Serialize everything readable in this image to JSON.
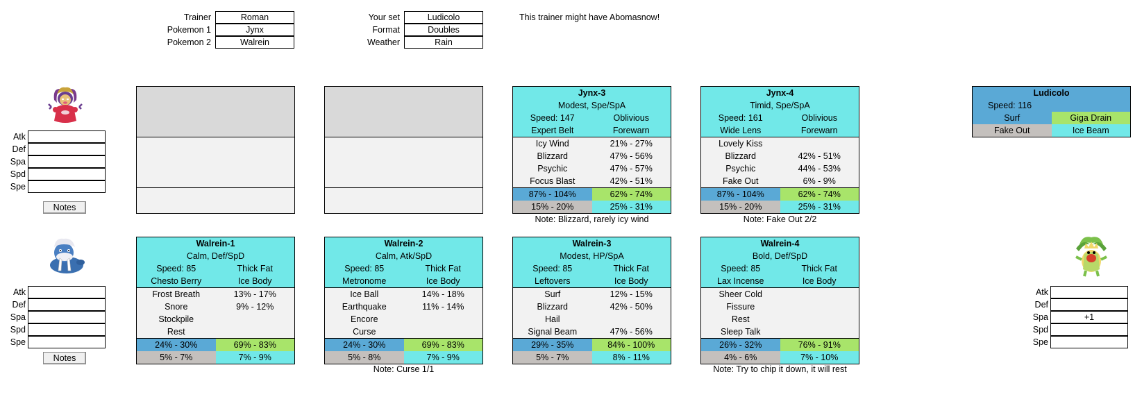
{
  "header": {
    "left": [
      {
        "label": "Trainer",
        "value": "Roman"
      },
      {
        "label": "Pokemon 1",
        "value": "Jynx"
      },
      {
        "label": "Pokemon 2",
        "value": "Walrein"
      }
    ],
    "right": [
      {
        "label": "Your set",
        "value": "Ludicolo"
      },
      {
        "label": "Format",
        "value": "Doubles"
      },
      {
        "label": "Weather",
        "value": "Rain"
      }
    ],
    "message": "This trainer might have Abomasnow!"
  },
  "stat_labels": [
    "Atk",
    "Def",
    "Spa",
    "Spd",
    "Spe"
  ],
  "notes_label": "Notes",
  "enemy_stats": {
    "jynx": [
      "",
      "",
      "",
      "",
      ""
    ],
    "walrein": [
      "",
      "",
      "",
      "",
      ""
    ]
  },
  "player_stats": [
    "",
    "",
    "+1",
    "",
    ""
  ],
  "jynx_cards": [
    {
      "name": "Jynx-3",
      "nature": "Modest, Spe/SpA",
      "speed": "Speed: 147",
      "ability": "Oblivious",
      "item": "Expert Belt",
      "ability2": "Forewarn",
      "moves": [
        {
          "name": "Icy Wind",
          "dmg": "21% - 27%"
        },
        {
          "name": "Blizzard",
          "dmg": "47% - 56%"
        },
        {
          "name": "Psychic",
          "dmg": "47% - 57%"
        },
        {
          "name": "Focus Blast",
          "dmg": "42% - 51%"
        }
      ],
      "foot": [
        "87% - 104%",
        "62% - 74%",
        "15% - 20%",
        "25% - 31%"
      ],
      "note": "Note: Blizzard, rarely icy wind"
    },
    {
      "name": "Jynx-4",
      "nature": "Timid, Spe/SpA",
      "speed": "Speed: 161",
      "ability": "Oblivious",
      "item": "Wide Lens",
      "ability2": "Forewarn",
      "moves": [
        {
          "name": "Lovely Kiss",
          "dmg": ""
        },
        {
          "name": "Blizzard",
          "dmg": "42% - 51%"
        },
        {
          "name": "Psychic",
          "dmg": "44% - 53%"
        },
        {
          "name": "Fake Out",
          "dmg": "6% - 9%"
        }
      ],
      "foot": [
        "87% - 104%",
        "62% - 74%",
        "15% - 20%",
        "25% - 31%"
      ],
      "note": "Note: Fake Out 2/2"
    }
  ],
  "walrein_cards": [
    {
      "name": "Walrein-1",
      "nature": "Calm, Def/SpD",
      "speed": "Speed: 85",
      "ability": "Thick Fat",
      "item": "Chesto Berry",
      "ability2": "Ice Body",
      "moves": [
        {
          "name": "Frost Breath",
          "dmg": "13% - 17%"
        },
        {
          "name": "Snore",
          "dmg": "9% - 12%"
        },
        {
          "name": "Stockpile",
          "dmg": ""
        },
        {
          "name": "Rest",
          "dmg": ""
        }
      ],
      "foot": [
        "24% - 30%",
        "69% - 83%",
        "5% - 7%",
        "7% - 9%"
      ],
      "note": ""
    },
    {
      "name": "Walrein-2",
      "nature": "Calm, Atk/SpD",
      "speed": "Speed: 85",
      "ability": "Thick Fat",
      "item": "Metronome",
      "ability2": "Ice Body",
      "moves": [
        {
          "name": "Ice Ball",
          "dmg": "14% - 18%"
        },
        {
          "name": "Earthquake",
          "dmg": "11% - 14%"
        },
        {
          "name": "Encore",
          "dmg": ""
        },
        {
          "name": "Curse",
          "dmg": ""
        }
      ],
      "foot": [
        "24% - 30%",
        "69% - 83%",
        "5% - 8%",
        "7% - 9%"
      ],
      "note": "Note: Curse 1/1"
    },
    {
      "name": "Walrein-3",
      "nature": "Modest, HP/SpA",
      "speed": "Speed: 85",
      "ability": "Thick Fat",
      "item": "Leftovers",
      "ability2": "Ice Body",
      "moves": [
        {
          "name": "Surf",
          "dmg": "12% - 15%"
        },
        {
          "name": "Blizzard",
          "dmg": "42% - 50%"
        },
        {
          "name": "Hail",
          "dmg": ""
        },
        {
          "name": "Signal Beam",
          "dmg": "47% - 56%"
        }
      ],
      "foot": [
        "29% - 35%",
        "84% - 100%",
        "5% - 7%",
        "8% - 11%"
      ],
      "note": ""
    },
    {
      "name": "Walrein-4",
      "nature": "Bold, Def/SpD",
      "speed": "Speed: 85",
      "ability": "Thick Fat",
      "item": "Lax Incense",
      "ability2": "Ice Body",
      "moves": [
        {
          "name": "Sheer Cold",
          "dmg": ""
        },
        {
          "name": "Fissure",
          "dmg": ""
        },
        {
          "name": "Rest",
          "dmg": ""
        },
        {
          "name": "Sleep Talk",
          "dmg": ""
        }
      ],
      "foot": [
        "26% - 32%",
        "76% - 91%",
        "4% - 6%",
        "7% - 10%"
      ],
      "note": "Note: Try to chip it down, it will rest"
    }
  ],
  "player": {
    "name": "Ludicolo",
    "speed": "Speed: 116",
    "moves": [
      "Surf",
      "Giga Drain",
      "Fake Out",
      "Ice Beam"
    ]
  }
}
